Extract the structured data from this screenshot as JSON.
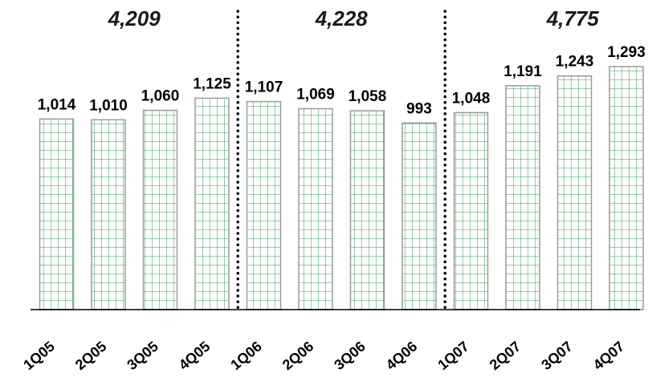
{
  "chart_data": {
    "type": "bar",
    "categories": [
      "1Q05",
      "2Q05",
      "3Q05",
      "4Q05",
      "1Q06",
      "2Q06",
      "3Q06",
      "4Q06",
      "1Q07",
      "2Q07",
      "3Q07",
      "4Q07"
    ],
    "values": [
      1014,
      1010,
      1060,
      1125,
      1107,
      1069,
      1058,
      993,
      1048,
      1191,
      1243,
      1293
    ],
    "value_labels": [
      "1,014",
      "1,010",
      "1,060",
      "1,125",
      "1,107",
      "1,069",
      "1,058",
      "993",
      "1,048",
      "1,191",
      "1,243",
      "1,293"
    ],
    "annual_totals": [
      {
        "label": "4,209",
        "from": "1Q05",
        "to": "4Q05"
      },
      {
        "label": "4,228",
        "from": "1Q06",
        "to": "4Q06"
      },
      {
        "label": "4,775",
        "from": "1Q07",
        "to": "4Q07"
      }
    ],
    "ylim": [
      0,
      1300
    ],
    "grid": false,
    "legend": "none",
    "bar_fill_pattern": "green grid on white",
    "colors": {
      "bar_line": "#2e9e55",
      "bar_border": "#9a9a9a",
      "axis": "#000000",
      "divider": "#000000"
    }
  }
}
